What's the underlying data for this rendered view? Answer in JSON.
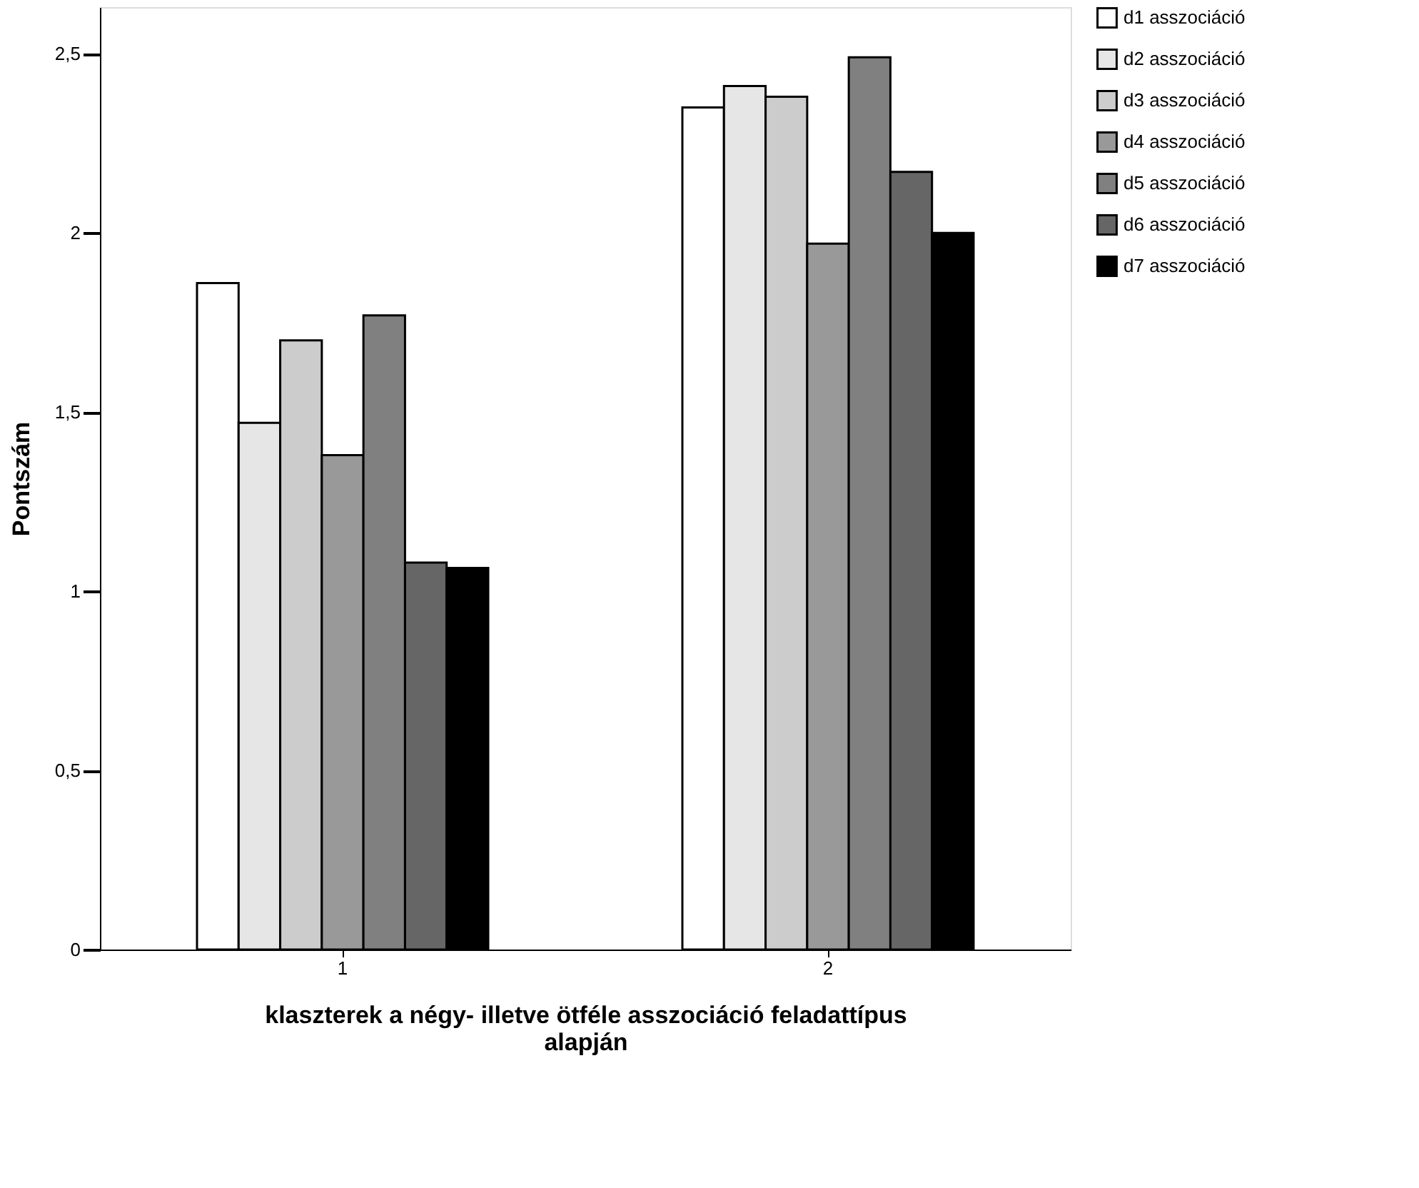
{
  "chart_data": {
    "type": "bar",
    "xlabel": "klaszterek a négy- illetve ötféle asszociáció feladattípus alapján",
    "ylabel": "Pontszám",
    "categories": [
      "1",
      "2"
    ],
    "series": [
      {
        "name": "d1 asszociáció",
        "color": "#ffffff",
        "values": [
          1.86,
          2.35
        ]
      },
      {
        "name": "d2 asszociáció",
        "color": "#e6e6e6",
        "values": [
          1.47,
          2.41
        ]
      },
      {
        "name": "d3 asszociáció",
        "color": "#cccccc",
        "values": [
          1.7,
          2.38
        ]
      },
      {
        "name": "d4 asszociáció",
        "color": "#999999",
        "values": [
          1.38,
          1.97
        ]
      },
      {
        "name": "d5 asszociáció",
        "color": "#808080",
        "values": [
          1.77,
          2.49
        ]
      },
      {
        "name": "d6 asszociáció",
        "color": "#666666",
        "values": [
          1.08,
          2.17
        ]
      },
      {
        "name": "d7 asszociáció",
        "color": "#000000",
        "values": [
          1.065,
          2.0
        ]
      }
    ],
    "ylim": [
      0,
      2.63
    ],
    "yticks": [
      0,
      {
        "value": 0.5,
        "label": "0,5"
      },
      1,
      {
        "value": 1.5,
        "label": "1,5"
      },
      2,
      {
        "value": 2.5,
        "label": "2,5"
      }
    ],
    "grid": false,
    "legend": "top right"
  }
}
